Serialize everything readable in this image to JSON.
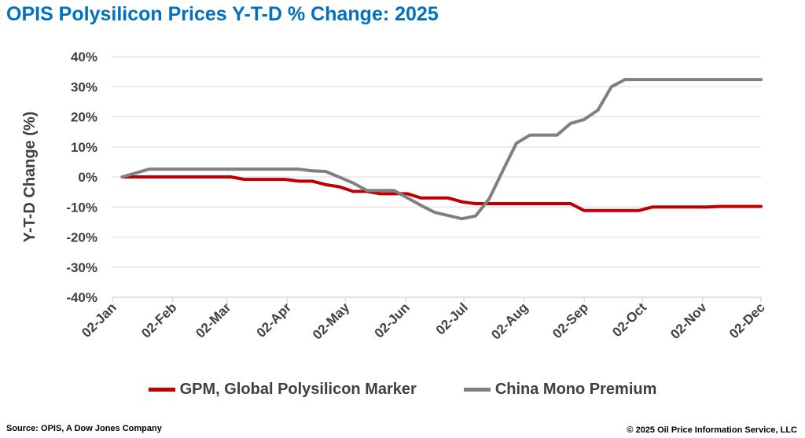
{
  "chart_data": {
    "type": "line",
    "title": "OPIS Polysilicon Prices Y-T-D % Change: 2025",
    "xlabel": "",
    "ylabel": "Y-T-D Change (%)",
    "ylim": [
      -40,
      40
    ],
    "yticks": [
      40,
      30,
      20,
      10,
      0,
      -10,
      -20,
      -30,
      -40
    ],
    "ytick_labels": [
      "40%",
      "30%",
      "20%",
      "10%",
      "0%",
      "-10%",
      "-20%",
      "-30%",
      "-40%"
    ],
    "xlim": [
      "2025-01-02",
      "2025-12-02"
    ],
    "xticks": [
      "2025-01-02",
      "2025-02-02",
      "2025-03-02",
      "2025-04-02",
      "2025-05-02",
      "2025-06-02",
      "2025-07-02",
      "2025-08-02",
      "2025-09-02",
      "2025-10-02",
      "2025-11-02",
      "2025-12-02"
    ],
    "xtick_labels": [
      "02-Jan",
      "02-Feb",
      "02-Mar",
      "02-Apr",
      "02-May",
      "02-Jun",
      "02-Jul",
      "02-Aug",
      "02-Sep",
      "02-Oct",
      "02-Nov",
      "02-Dec"
    ],
    "grid": true,
    "legend": "bottom",
    "series": [
      {
        "name": "GPM, Global Polysilicon Marker",
        "color": "#C00000",
        "x": [
          "2025-01-07",
          "2025-03-04",
          "2025-03-11",
          "2025-04-01",
          "2025-04-08",
          "2025-04-15",
          "2025-04-22",
          "2025-04-29",
          "2025-05-06",
          "2025-05-13",
          "2025-05-20",
          "2025-06-03",
          "2025-06-10",
          "2025-06-24",
          "2025-07-01",
          "2025-07-08",
          "2025-08-26",
          "2025-09-02",
          "2025-09-30",
          "2025-10-07",
          "2025-11-04",
          "2025-11-11",
          "2025-12-02"
        ],
        "y": [
          0,
          0,
          -0.8,
          -0.8,
          -1.4,
          -1.4,
          -2.6,
          -3.3,
          -4.8,
          -4.8,
          -5.6,
          -5.6,
          -7.0,
          -7.0,
          -8.3,
          -8.9,
          -8.9,
          -11.2,
          -11.2,
          -10.0,
          -10.0,
          -9.8,
          -9.8
        ]
      },
      {
        "name": "China Mono Premium",
        "color": "#808080",
        "x": [
          "2025-01-07",
          "2025-01-21",
          "2025-04-08",
          "2025-04-15",
          "2025-04-22",
          "2025-05-06",
          "2025-05-13",
          "2025-05-27",
          "2025-06-10",
          "2025-06-17",
          "2025-07-01",
          "2025-07-08",
          "2025-07-15",
          "2025-07-22",
          "2025-07-29",
          "2025-08-05",
          "2025-08-19",
          "2025-08-26",
          "2025-09-02",
          "2025-09-09",
          "2025-09-16",
          "2025-09-23",
          "2025-12-02"
        ],
        "y": [
          0,
          2.6,
          2.6,
          2.0,
          1.8,
          -2.0,
          -4.5,
          -4.5,
          -9.5,
          -11.8,
          -13.9,
          -13.0,
          -7.3,
          2.0,
          11.2,
          13.9,
          13.9,
          17.8,
          19.1,
          22.2,
          30.0,
          32.4,
          32.4
        ]
      }
    ]
  },
  "footer": {
    "source": "Source: OPIS, A Dow Jones Company",
    "copyright": "© 2025 Oil Price Information Service, LLC"
  }
}
